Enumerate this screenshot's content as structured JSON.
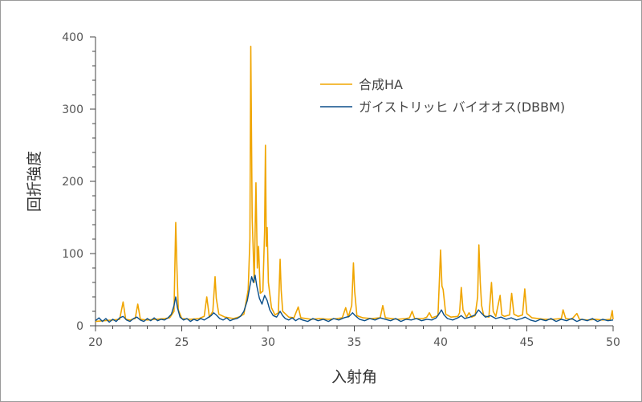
{
  "chart_data": {
    "type": "line",
    "xlabel": "入射角",
    "ylabel": "回折強度",
    "xlim": [
      20,
      50
    ],
    "ylim": [
      0,
      400
    ],
    "x_ticks": [
      20,
      25,
      30,
      35,
      40,
      45,
      50
    ],
    "y_ticks": [
      0,
      100,
      200,
      300,
      400
    ],
    "grid": false,
    "legend_position": "top-right",
    "series": [
      {
        "name": "合成HA",
        "color": "#F0A500",
        "points": [
          [
            20,
            6
          ],
          [
            20.5,
            7
          ],
          [
            21,
            8
          ],
          [
            21.4,
            9
          ],
          [
            21.6,
            33
          ],
          [
            21.75,
            9
          ],
          [
            22,
            8
          ],
          [
            22.3,
            10
          ],
          [
            22.45,
            30
          ],
          [
            22.6,
            9
          ],
          [
            23,
            8
          ],
          [
            23.5,
            9
          ],
          [
            24,
            10
          ],
          [
            24.3,
            11
          ],
          [
            24.55,
            20
          ],
          [
            24.65,
            143
          ],
          [
            24.72,
            80
          ],
          [
            24.8,
            22
          ],
          [
            25,
            10
          ],
          [
            25.5,
            9
          ],
          [
            26,
            10
          ],
          [
            26.3,
            13
          ],
          [
            26.45,
            40
          ],
          [
            26.6,
            12
          ],
          [
            26.8,
            20
          ],
          [
            26.93,
            68
          ],
          [
            27,
            38
          ],
          [
            27.15,
            16
          ],
          [
            27.5,
            12
          ],
          [
            28,
            10
          ],
          [
            28.3,
            12
          ],
          [
            28.6,
            16
          ],
          [
            28.85,
            50
          ],
          [
            28.95,
            120
          ],
          [
            29.0,
            387
          ],
          [
            29.08,
            150
          ],
          [
            29.2,
            60
          ],
          [
            29.3,
            198
          ],
          [
            29.38,
            80
          ],
          [
            29.45,
            110
          ],
          [
            29.55,
            45
          ],
          [
            29.7,
            48
          ],
          [
            29.8,
            130
          ],
          [
            29.85,
            250
          ],
          [
            29.9,
            110
          ],
          [
            29.95,
            136
          ],
          [
            30.02,
            60
          ],
          [
            30.2,
            25
          ],
          [
            30.4,
            15
          ],
          [
            30.6,
            18
          ],
          [
            30.7,
            92
          ],
          [
            30.76,
            50
          ],
          [
            30.85,
            20
          ],
          [
            31.2,
            12
          ],
          [
            31.5,
            11
          ],
          [
            31.75,
            26
          ],
          [
            31.9,
            11
          ],
          [
            32.5,
            9
          ],
          [
            33,
            10
          ],
          [
            33.5,
            9
          ],
          [
            34,
            10
          ],
          [
            34.3,
            11
          ],
          [
            34.5,
            25
          ],
          [
            34.65,
            12
          ],
          [
            34.85,
            28
          ],
          [
            34.95,
            87
          ],
          [
            35.02,
            48
          ],
          [
            35.15,
            14
          ],
          [
            35.5,
            11
          ],
          [
            36,
            10
          ],
          [
            36.5,
            11
          ],
          [
            36.65,
            28
          ],
          [
            36.8,
            11
          ],
          [
            37.5,
            9
          ],
          [
            38,
            10
          ],
          [
            38.2,
            11
          ],
          [
            38.35,
            20
          ],
          [
            38.5,
            10
          ],
          [
            39,
            10
          ],
          [
            39.2,
            12
          ],
          [
            39.35,
            18
          ],
          [
            39.5,
            11
          ],
          [
            39.85,
            14
          ],
          [
            40.0,
            105
          ],
          [
            40.08,
            55
          ],
          [
            40.15,
            50
          ],
          [
            40.3,
            16
          ],
          [
            40.6,
            12
          ],
          [
            41,
            13
          ],
          [
            41.1,
            18
          ],
          [
            41.2,
            53
          ],
          [
            41.3,
            22
          ],
          [
            41.5,
            12
          ],
          [
            41.65,
            18
          ],
          [
            41.8,
            12
          ],
          [
            42.0,
            14
          ],
          [
            42.15,
            40
          ],
          [
            42.22,
            112
          ],
          [
            42.3,
            60
          ],
          [
            42.38,
            28
          ],
          [
            42.5,
            14
          ],
          [
            42.8,
            12
          ],
          [
            42.95,
            60
          ],
          [
            43.05,
            20
          ],
          [
            43.2,
            13
          ],
          [
            43.45,
            42
          ],
          [
            43.55,
            15
          ],
          [
            43.7,
            13
          ],
          [
            44.0,
            15
          ],
          [
            44.12,
            45
          ],
          [
            44.25,
            16
          ],
          [
            44.5,
            13
          ],
          [
            44.75,
            15
          ],
          [
            44.88,
            51
          ],
          [
            45.0,
            17
          ],
          [
            45.3,
            11
          ],
          [
            46,
            9
          ],
          [
            46.5,
            9
          ],
          [
            47,
            10
          ],
          [
            47.1,
            22
          ],
          [
            47.25,
            10
          ],
          [
            47.6,
            9
          ],
          [
            47.9,
            17
          ],
          [
            48.05,
            9
          ],
          [
            48.5,
            8
          ],
          [
            49,
            9
          ],
          [
            49.4,
            8
          ],
          [
            49.85,
            9
          ],
          [
            49.95,
            21
          ],
          [
            50,
            9
          ]
        ]
      },
      {
        "name": "ガイストリッヒ バイオオス(DBBM)",
        "color": "#0B4F8A",
        "points": [
          [
            20,
            7
          ],
          [
            20.2,
            11
          ],
          [
            20.4,
            6
          ],
          [
            20.6,
            10
          ],
          [
            20.8,
            5
          ],
          [
            21,
            9
          ],
          [
            21.2,
            6
          ],
          [
            21.4,
            11
          ],
          [
            21.6,
            13
          ],
          [
            21.8,
            8
          ],
          [
            22,
            6
          ],
          [
            22.2,
            10
          ],
          [
            22.4,
            12
          ],
          [
            22.6,
            8
          ],
          [
            22.8,
            6
          ],
          [
            23,
            10
          ],
          [
            23.2,
            7
          ],
          [
            23.4,
            11
          ],
          [
            23.6,
            7
          ],
          [
            23.8,
            9
          ],
          [
            24,
            8
          ],
          [
            24.2,
            11
          ],
          [
            24.4,
            16
          ],
          [
            24.55,
            28
          ],
          [
            24.65,
            40
          ],
          [
            24.75,
            25
          ],
          [
            24.9,
            12
          ],
          [
            25.1,
            8
          ],
          [
            25.3,
            10
          ],
          [
            25.5,
            6
          ],
          [
            25.7,
            9
          ],
          [
            25.9,
            7
          ],
          [
            26.1,
            10
          ],
          [
            26.3,
            8
          ],
          [
            26.5,
            11
          ],
          [
            26.7,
            14
          ],
          [
            26.85,
            18
          ],
          [
            27,
            15
          ],
          [
            27.2,
            10
          ],
          [
            27.4,
            8
          ],
          [
            27.6,
            11
          ],
          [
            27.8,
            7
          ],
          [
            28,
            9
          ],
          [
            28.2,
            10
          ],
          [
            28.4,
            13
          ],
          [
            28.6,
            20
          ],
          [
            28.8,
            35
          ],
          [
            28.95,
            55
          ],
          [
            29.05,
            68
          ],
          [
            29.15,
            60
          ],
          [
            29.25,
            70
          ],
          [
            29.35,
            55
          ],
          [
            29.5,
            38
          ],
          [
            29.65,
            30
          ],
          [
            29.8,
            42
          ],
          [
            29.95,
            35
          ],
          [
            30.1,
            22
          ],
          [
            30.3,
            14
          ],
          [
            30.5,
            12
          ],
          [
            30.7,
            20
          ],
          [
            30.85,
            14
          ],
          [
            31,
            10
          ],
          [
            31.2,
            8
          ],
          [
            31.4,
            11
          ],
          [
            31.6,
            7
          ],
          [
            31.8,
            10
          ],
          [
            32,
            8
          ],
          [
            32.3,
            6
          ],
          [
            32.6,
            10
          ],
          [
            32.9,
            7
          ],
          [
            33.2,
            9
          ],
          [
            33.5,
            6
          ],
          [
            33.8,
            10
          ],
          [
            34.1,
            8
          ],
          [
            34.4,
            11
          ],
          [
            34.7,
            13
          ],
          [
            34.9,
            18
          ],
          [
            35.05,
            14
          ],
          [
            35.3,
            9
          ],
          [
            35.6,
            7
          ],
          [
            35.9,
            10
          ],
          [
            36.2,
            8
          ],
          [
            36.5,
            11
          ],
          [
            36.8,
            9
          ],
          [
            37.1,
            7
          ],
          [
            37.4,
            10
          ],
          [
            37.7,
            6
          ],
          [
            38,
            9
          ],
          [
            38.3,
            8
          ],
          [
            38.6,
            10
          ],
          [
            38.9,
            7
          ],
          [
            39.2,
            9
          ],
          [
            39.5,
            8
          ],
          [
            39.75,
            11
          ],
          [
            39.95,
            18
          ],
          [
            40.05,
            22
          ],
          [
            40.2,
            15
          ],
          [
            40.4,
            10
          ],
          [
            40.7,
            8
          ],
          [
            41,
            11
          ],
          [
            41.2,
            14
          ],
          [
            41.4,
            10
          ],
          [
            41.7,
            12
          ],
          [
            42.0,
            15
          ],
          [
            42.2,
            22
          ],
          [
            42.35,
            18
          ],
          [
            42.6,
            12
          ],
          [
            42.9,
            14
          ],
          [
            43.2,
            10
          ],
          [
            43.5,
            12
          ],
          [
            43.8,
            9
          ],
          [
            44.1,
            11
          ],
          [
            44.4,
            8
          ],
          [
            44.7,
            10
          ],
          [
            44.9,
            12
          ],
          [
            45.2,
            8
          ],
          [
            45.5,
            6
          ],
          [
            45.8,
            9
          ],
          [
            46.1,
            7
          ],
          [
            46.4,
            10
          ],
          [
            46.7,
            6
          ],
          [
            47,
            9
          ],
          [
            47.3,
            7
          ],
          [
            47.6,
            10
          ],
          [
            47.9,
            6
          ],
          [
            48.2,
            9
          ],
          [
            48.5,
            7
          ],
          [
            48.8,
            10
          ],
          [
            49.1,
            6
          ],
          [
            49.4,
            9
          ],
          [
            49.7,
            7
          ],
          [
            50,
            8
          ]
        ]
      }
    ]
  }
}
